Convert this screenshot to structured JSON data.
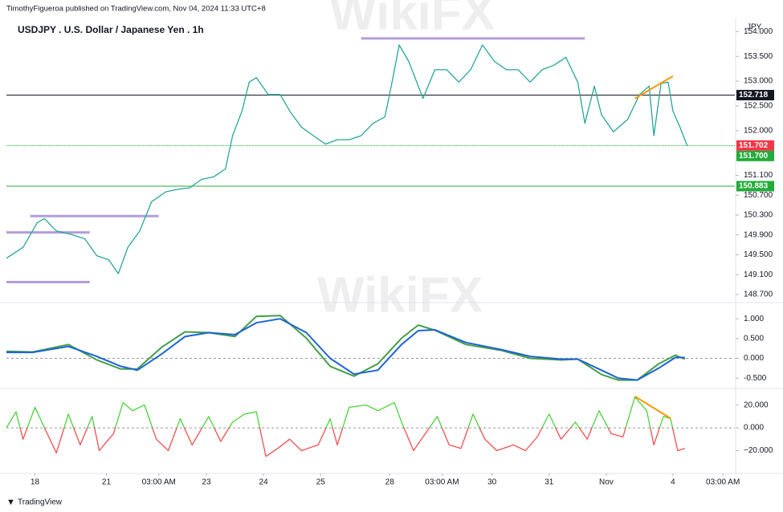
{
  "header": {
    "byline": "TimothyFigueroa published on TradingView.com, Nov 04, 2024 11:33 UTC+8",
    "brand": "TradingView",
    "watermarks": [
      "WikiFX",
      "WikiFX"
    ]
  },
  "chart_data": [
    {
      "type": "line",
      "title": "USDJPY . U.S. Dollar / Japanese Yen . 1h",
      "unit": "JPY",
      "xlim": [
        0,
        306
      ],
      "x": [
        0,
        7,
        13,
        16,
        21,
        28,
        33,
        38,
        43,
        47,
        51,
        56,
        61,
        67,
        72,
        77,
        82,
        87,
        92,
        95,
        99,
        102,
        105,
        110,
        115,
        119,
        124,
        129,
        134,
        139,
        144,
        149,
        154,
        159,
        162,
        165,
        169,
        173,
        175,
        180,
        185,
        190,
        195,
        200,
        205,
        210,
        215,
        220,
        225,
        230,
        235,
        240,
        243,
        247,
        250,
        255,
        261,
        266,
        270,
        272,
        275,
        278,
        280,
        283,
        286
      ],
      "series": [
        {
          "color": "#26a69a",
          "values": [
            149.43,
            149.65,
            150.15,
            150.23,
            149.98,
            149.9,
            149.82,
            149.48,
            149.4,
            149.12,
            149.65,
            149.98,
            150.57,
            150.77,
            150.82,
            150.85,
            151.02,
            151.07,
            151.23,
            151.9,
            152.4,
            152.98,
            153.07,
            152.73,
            152.73,
            152.4,
            152.07,
            151.9,
            151.73,
            151.82,
            151.82,
            151.9,
            152.15,
            152.28,
            152.98,
            153.73,
            153.4,
            152.9,
            152.65,
            153.23,
            153.23,
            152.98,
            153.23,
            153.73,
            153.4,
            153.23,
            153.23,
            152.98,
            153.23,
            153.32,
            153.48,
            152.98,
            152.15,
            152.9,
            152.32,
            151.98,
            152.23,
            152.73,
            152.9,
            151.9,
            152.95,
            152.98,
            152.4,
            152.07,
            151.7
          ]
        }
      ],
      "ylim": [
        148.57,
        154.15
      ],
      "yticks": [
        {
          "value": 154,
          "label": "154.000"
        },
        {
          "value": 153.5,
          "label": "153.500"
        },
        {
          "value": 153,
          "label": "153.000"
        },
        {
          "value": 152.5,
          "label": "152.500"
        },
        {
          "value": 152,
          "label": "152.000"
        },
        {
          "value": 151.1,
          "label": "151.100"
        },
        {
          "value": 150.7,
          "label": "150.700"
        },
        {
          "value": 150.3,
          "label": "150.300"
        },
        {
          "value": 149.9,
          "label": "149.900"
        },
        {
          "value": 149.5,
          "label": "149.500"
        },
        {
          "value": 149.1,
          "label": "149.100"
        },
        {
          "value": 148.7,
          "label": "148.700"
        }
      ],
      "price_lines": [
        {
          "value": 152.718,
          "label": "152.718",
          "color": "#131722",
          "style": "solid"
        },
        {
          "value": 151.702,
          "label": "151.702",
          "color": "#f23645",
          "style": "none"
        },
        {
          "value": 151.7,
          "label": "151.700",
          "color": "#22ab3a",
          "style": "dotted"
        },
        {
          "value": 150.883,
          "label": "150.883",
          "color": "#22ab3a",
          "style": "solid"
        }
      ],
      "levels": [
        {
          "value": 153.86,
          "x": [
            149,
            243
          ]
        },
        {
          "value": 150.28,
          "x": [
            10,
            64
          ]
        },
        {
          "value": 149.95,
          "x": [
            0,
            35
          ]
        },
        {
          "value": 148.95,
          "x": [
            0,
            35
          ]
        }
      ],
      "level_color": "#b39ddb",
      "trendlines": [
        {
          "x": [
            264,
            280
          ],
          "y": [
            152.65,
            153.1
          ],
          "color": "#ff9800"
        }
      ]
    },
    {
      "type": "line",
      "xlim": [
        0,
        306
      ],
      "x": [
        0,
        11,
        26,
        38,
        48,
        55,
        65,
        75,
        85,
        96,
        105,
        115,
        126,
        136,
        146,
        156,
        166,
        173,
        180,
        193,
        208,
        220,
        233,
        240,
        250,
        257,
        265,
        274,
        281,
        285
      ],
      "series": [
        {
          "color": "#43a047",
          "values": [
            0.18,
            0.16,
            0.35,
            -0.04,
            -0.27,
            -0.27,
            0.27,
            0.67,
            0.65,
            0.55,
            1.06,
            1.08,
            0.51,
            -0.2,
            -0.45,
            -0.14,
            0.51,
            0.84,
            0.71,
            0.35,
            0.2,
            0,
            -0.04,
            -0.02,
            -0.41,
            -0.55,
            -0.55,
            -0.14,
            0.08,
            -0.02
          ]
        },
        {
          "color": "#1e63d6",
          "values": [
            0.15,
            0.15,
            0.3,
            0.05,
            -0.2,
            -0.3,
            0.1,
            0.55,
            0.65,
            0.6,
            0.9,
            1.0,
            0.65,
            0.0,
            -0.4,
            -0.3,
            0.35,
            0.7,
            0.72,
            0.4,
            0.22,
            0.05,
            -0.02,
            -0.02,
            -0.3,
            -0.5,
            -0.55,
            -0.25,
            0.02,
            0.02
          ]
        }
      ],
      "ylim": [
        -0.72,
        1.35
      ],
      "yticks": [
        {
          "value": 1,
          "label": "1.000"
        },
        {
          "value": 0.5,
          "label": "0.500"
        },
        {
          "value": 0,
          "label": "0.000"
        },
        {
          "value": -0.5,
          "label": "-0.500"
        }
      ],
      "zero_line": true
    },
    {
      "type": "line",
      "xlim": [
        0,
        306
      ],
      "x": [
        0,
        4,
        7,
        12,
        16,
        21,
        26,
        31,
        36,
        39,
        45,
        49,
        53,
        58,
        63,
        68,
        73,
        78,
        85,
        90,
        95,
        100,
        105,
        109,
        114,
        119,
        124,
        131,
        136,
        139,
        144,
        151,
        156,
        163,
        166,
        171,
        176,
        181,
        186,
        191,
        196,
        201,
        206,
        213,
        218,
        223,
        228,
        233,
        239,
        244,
        249,
        254,
        259,
        264,
        269,
        272,
        276,
        279,
        282,
        285
      ],
      "series": [
        {
          "color": "#4cd13c",
          "negative_color": "#f05050",
          "values": [
            0,
            14,
            -10,
            18,
            0,
            -22,
            12,
            -15,
            10,
            -20,
            -5,
            22,
            15,
            20,
            -10,
            -20,
            8,
            -15,
            10,
            -12,
            5,
            12,
            14,
            -25,
            -18,
            -10,
            -20,
            -15,
            8,
            -15,
            18,
            20,
            15,
            22,
            5,
            -20,
            -5,
            10,
            -15,
            -18,
            12,
            -10,
            -20,
            -15,
            -20,
            -8,
            12,
            -10,
            5,
            -10,
            15,
            -5,
            -8,
            27,
            15,
            -15,
            10,
            8,
            -20,
            -18
          ]
        }
      ],
      "ylim": [
        -38.6,
        31.7
      ],
      "yticks": [
        {
          "value": 20,
          "label": "20.000"
        },
        {
          "value": 0,
          "label": "0.000"
        },
        {
          "value": -20,
          "label": "−20.000"
        }
      ],
      "zero_line": true,
      "trendlines": [
        {
          "x": [
            264,
            279
          ],
          "y": [
            27.6,
            8.3
          ],
          "color": "#ff9800"
        }
      ],
      "xticks": [
        {
          "value": 12,
          "label": "18"
        },
        {
          "value": 42,
          "label": "21"
        },
        {
          "value": 64,
          "label": "03:00 AM"
        },
        {
          "value": 84,
          "label": "23"
        },
        {
          "value": 108,
          "label": "24"
        },
        {
          "value": 132,
          "label": "25"
        },
        {
          "value": 161,
          "label": "28"
        },
        {
          "value": 183,
          "label": "03:00 AM"
        },
        {
          "value": 204,
          "label": "30"
        },
        {
          "value": 228,
          "label": "31"
        },
        {
          "value": 252,
          "label": "Nov"
        },
        {
          "value": 280,
          "label": "4"
        },
        {
          "value": 301,
          "label": "03:00 AM"
        }
      ]
    }
  ]
}
